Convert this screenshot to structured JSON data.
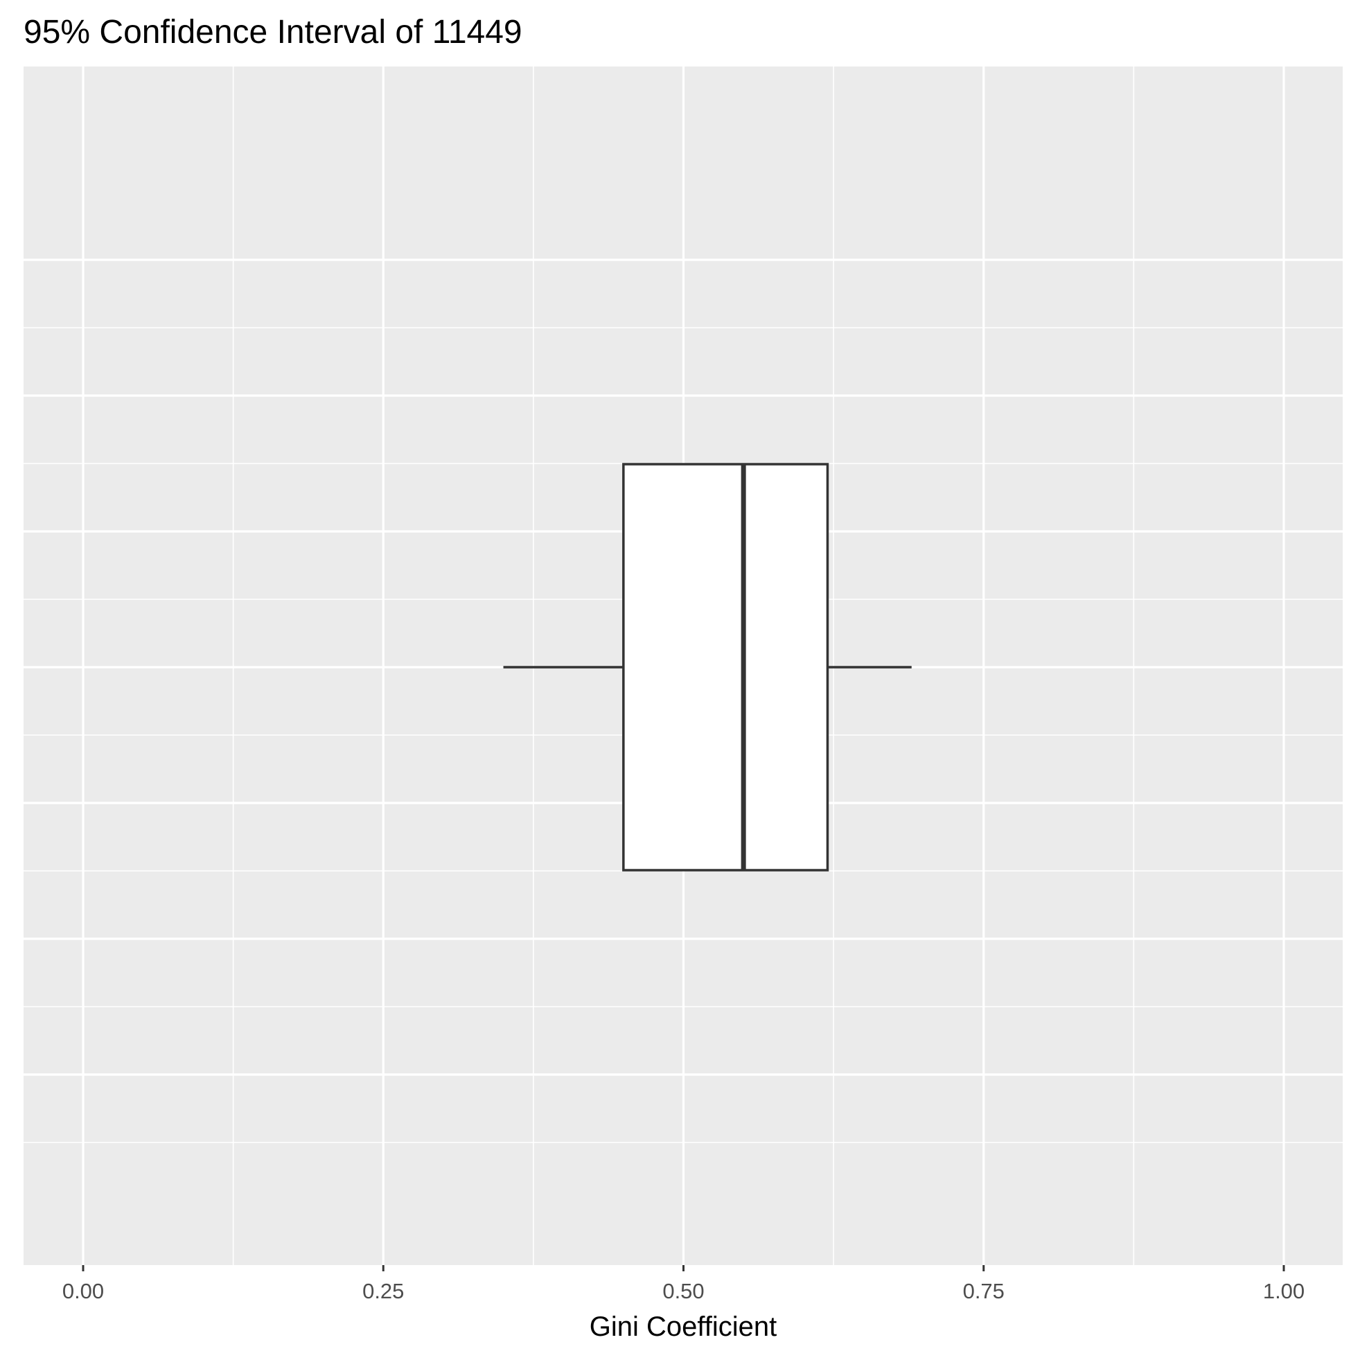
{
  "chart_data": {
    "type": "boxplot",
    "title": "95% Confidence Interval of 11449",
    "xlabel": "Gini Coefficient",
    "ylabel": "",
    "xlim": [
      -0.05,
      1.05
    ],
    "x_ticks": [
      0.0,
      0.25,
      0.5,
      0.75,
      1.0
    ],
    "x_tick_labels": [
      "0.00",
      "0.25",
      "0.50",
      "0.75",
      "1.00"
    ],
    "orientation": "horizontal",
    "grid": true,
    "box": {
      "whisker_low": 0.35,
      "q1": 0.45,
      "median": 0.55,
      "q3": 0.62,
      "whisker_high": 0.69
    },
    "colors": {
      "panel_background": "#ebebeb",
      "grid_line": "#ffffff",
      "box_fill": "#ffffff",
      "box_stroke": "#333333"
    }
  }
}
